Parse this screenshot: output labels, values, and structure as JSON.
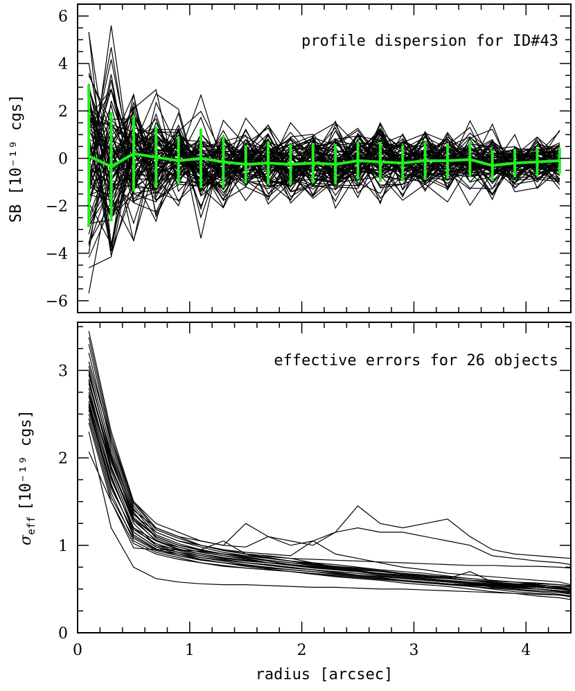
{
  "chart_data": [
    {
      "type": "line",
      "panel": "top",
      "annotation": "profile dispersion for ID#43",
      "ylabel": "SB [10⁻¹⁹ cgs]",
      "xlabel": "",
      "xlim": [
        0,
        4.4
      ],
      "ylim": [
        -6.5,
        6.5
      ],
      "x_ticks": [
        0,
        1,
        2,
        3,
        4
      ],
      "y_ticks": [
        -6,
        -4,
        -2,
        0,
        2,
        4,
        6
      ],
      "y_tick_labels": [
        "−6",
        "−4",
        "−2",
        "0",
        "2",
        "4",
        "6"
      ],
      "grid": false,
      "line_color": "#000000",
      "mean_color": "#22ee22",
      "radii": [
        0.1,
        0.3,
        0.5,
        0.7,
        0.9,
        1.1,
        1.3,
        1.5,
        1.7,
        1.9,
        2.1,
        2.3,
        2.5,
        2.7,
        2.9,
        3.1,
        3.3,
        3.5,
        3.7,
        3.9,
        4.1,
        4.3
      ],
      "mean_profile": [
        0.1,
        -0.35,
        0.2,
        0.05,
        -0.1,
        0.0,
        -0.15,
        -0.25,
        -0.2,
        -0.25,
        -0.2,
        -0.25,
        -0.1,
        -0.15,
        -0.2,
        -0.1,
        -0.1,
        -0.05,
        -0.3,
        -0.2,
        -0.15,
        -0.1
      ],
      "dispersion": [
        3.0,
        2.3,
        1.6,
        1.3,
        1.0,
        1.25,
        1.1,
        0.8,
        0.9,
        0.85,
        0.85,
        0.85,
        0.8,
        0.85,
        0.75,
        0.8,
        0.75,
        0.75,
        0.65,
        0.6,
        0.6,
        0.55
      ],
      "n_profiles": 80,
      "note": "individual profiles are drawn as random realisations with the listed dispersion"
    },
    {
      "type": "line",
      "panel": "bottom",
      "annotation": "effective errors for 26 objects",
      "ylabel_main": "σ",
      "ylabel_sub": "eff",
      "ylabel_rest": "[10⁻¹⁹ cgs]",
      "xlabel": "radius [arcsec]",
      "xlim": [
        0,
        4.4
      ],
      "ylim": [
        0,
        3.55
      ],
      "x_ticks": [
        0,
        1,
        2,
        3,
        4
      ],
      "x_tick_labels": [
        "0",
        "1",
        "2",
        "3",
        "4"
      ],
      "y_ticks": [
        0,
        1,
        2,
        3
      ],
      "y_tick_labels": [
        "0",
        "1",
        "2",
        "3"
      ],
      "grid": false,
      "line_color": "#000000",
      "radii": [
        0.1,
        0.3,
        0.5,
        0.7,
        0.9,
        1.1,
        1.3,
        1.5,
        1.7,
        1.9,
        2.1,
        2.3,
        2.5,
        2.7,
        2.9,
        3.1,
        3.3,
        3.5,
        3.7,
        3.9,
        4.1,
        4.3,
        4.4
      ],
      "series": [
        {
          "values": [
            3.45,
            2.3,
            1.5,
            1.2,
            1.1,
            1.0,
            0.95,
            0.9,
            0.88,
            0.85,
            0.8,
            0.78,
            0.75,
            0.72,
            0.7,
            0.68,
            0.65,
            0.62,
            0.6,
            0.58,
            0.55,
            0.52,
            0.5
          ]
        },
        {
          "values": [
            3.3,
            2.2,
            1.45,
            1.15,
            1.05,
            0.98,
            0.92,
            0.88,
            0.85,
            0.82,
            0.78,
            0.75,
            0.72,
            0.7,
            0.68,
            0.66,
            0.63,
            0.6,
            0.58,
            0.56,
            0.55,
            0.52,
            0.5
          ]
        },
        {
          "values": [
            3.0,
            2.0,
            1.3,
            1.05,
            0.95,
            0.9,
            0.86,
            0.82,
            0.8,
            0.78,
            0.75,
            0.72,
            0.7,
            0.68,
            0.65,
            0.62,
            0.6,
            0.58,
            0.56,
            0.55,
            0.53,
            0.5,
            0.48
          ]
        },
        {
          "values": [
            2.9,
            1.9,
            1.25,
            1.0,
            0.92,
            0.88,
            0.84,
            0.8,
            0.78,
            0.75,
            0.72,
            0.7,
            0.68,
            0.65,
            0.62,
            0.6,
            0.58,
            0.56,
            0.55,
            0.53,
            0.52,
            0.5,
            0.48
          ]
        },
        {
          "values": [
            2.8,
            1.85,
            1.2,
            1.0,
            0.95,
            0.9,
            0.85,
            0.82,
            0.8,
            0.78,
            0.76,
            0.74,
            0.72,
            0.7,
            0.68,
            0.66,
            0.64,
            0.62,
            0.6,
            0.58,
            0.56,
            0.55,
            0.53
          ]
        },
        {
          "values": [
            2.7,
            1.8,
            1.15,
            0.98,
            0.92,
            0.86,
            0.82,
            0.78,
            0.75,
            0.72,
            0.7,
            0.68,
            0.66,
            0.64,
            0.62,
            0.6,
            0.58,
            0.57,
            0.55,
            0.54,
            0.52,
            0.5,
            0.48
          ]
        },
        {
          "values": [
            2.6,
            1.7,
            1.1,
            0.95,
            0.9,
            0.84,
            0.8,
            0.76,
            0.73,
            0.7,
            0.68,
            0.66,
            0.64,
            0.62,
            0.6,
            0.58,
            0.56,
            0.55,
            0.53,
            0.52,
            0.5,
            0.48,
            0.47
          ]
        },
        {
          "values": [
            2.5,
            1.6,
            1.05,
            0.92,
            0.86,
            0.8,
            0.77,
            0.74,
            0.72,
            0.7,
            0.67,
            0.65,
            0.63,
            0.61,
            0.59,
            0.57,
            0.56,
            0.54,
            0.53,
            0.51,
            0.5,
            0.48,
            0.46
          ]
        },
        {
          "values": [
            2.07,
            1.5,
            0.97,
            0.95,
            0.95,
            0.93,
            0.9,
            0.88,
            0.87,
            0.85,
            0.84,
            0.83,
            0.82,
            0.81,
            0.8,
            0.79,
            0.78,
            0.77,
            0.77,
            0.76,
            0.76,
            0.75,
            0.74
          ]
        },
        {
          "values": [
            2.3,
            1.2,
            0.75,
            0.62,
            0.58,
            0.56,
            0.55,
            0.55,
            0.54,
            0.53,
            0.52,
            0.52,
            0.51,
            0.5,
            0.5,
            0.49,
            0.48,
            0.47,
            0.46,
            0.45,
            0.44,
            0.43,
            0.42
          ]
        },
        {
          "values": [
            3.1,
            2.2,
            1.5,
            1.25,
            1.15,
            1.05,
            1.0,
            0.98,
            1.1,
            1.05,
            1.0,
            1.15,
            1.45,
            1.25,
            1.2,
            1.25,
            1.3,
            1.1,
            0.95,
            0.9,
            0.88,
            0.86,
            0.85
          ]
        },
        {
          "values": [
            2.95,
            2.05,
            1.4,
            1.2,
            1.1,
            1.05,
            1.0,
            1.25,
            1.1,
            1.0,
            1.05,
            1.15,
            1.2,
            1.15,
            1.15,
            1.1,
            1.05,
            1.0,
            0.88,
            0.85,
            0.82,
            0.8,
            0.78
          ]
        },
        {
          "values": [
            2.85,
            1.95,
            1.35,
            1.15,
            1.05,
            1.0,
            0.95,
            0.92,
            0.9,
            0.88,
            1.05,
            0.9,
            0.85,
            0.8,
            0.75,
            0.72,
            0.68,
            0.66,
            0.64,
            0.62,
            0.6,
            0.58,
            0.55
          ]
        },
        {
          "values": [
            2.75,
            1.9,
            1.3,
            1.1,
            1.0,
            0.95,
            1.05,
            0.9,
            0.85,
            0.82,
            0.8,
            0.75,
            0.7,
            0.68,
            0.65,
            0.63,
            0.62,
            0.7,
            0.58,
            0.56,
            0.55,
            0.52,
            0.5
          ]
        },
        {
          "values": [
            2.65,
            1.75,
            1.2,
            1.05,
            0.98,
            0.92,
            0.88,
            0.85,
            0.8,
            0.78,
            0.75,
            0.72,
            0.7,
            0.66,
            0.63,
            0.6,
            0.58,
            0.56,
            0.54,
            0.52,
            0.5,
            0.47,
            0.45
          ]
        },
        {
          "values": [
            2.55,
            1.65,
            1.15,
            0.98,
            0.9,
            0.86,
            0.83,
            0.8,
            0.77,
            0.74,
            0.72,
            0.7,
            0.68,
            0.65,
            0.62,
            0.6,
            0.58,
            0.56,
            0.52,
            0.5,
            0.48,
            0.46,
            0.44
          ]
        },
        {
          "values": [
            2.45,
            1.55,
            1.08,
            0.94,
            0.88,
            0.83,
            0.8,
            0.77,
            0.74,
            0.72,
            0.7,
            0.68,
            0.66,
            0.63,
            0.6,
            0.58,
            0.56,
            0.53,
            0.5,
            0.47,
            0.45,
            0.43,
            0.41
          ]
        },
        {
          "values": [
            2.4,
            1.5,
            1.02,
            0.9,
            0.84,
            0.8,
            0.76,
            0.74,
            0.72,
            0.7,
            0.67,
            0.64,
            0.62,
            0.6,
            0.57,
            0.55,
            0.53,
            0.5,
            0.47,
            0.45,
            0.42,
            0.4,
            0.38
          ]
        },
        {
          "values": [
            3.2,
            2.15,
            1.42,
            1.12,
            1.02,
            0.95,
            0.9,
            0.87,
            0.83,
            0.8,
            0.78,
            0.76,
            0.73,
            0.7,
            0.67,
            0.64,
            0.62,
            0.6,
            0.57,
            0.55,
            0.54,
            0.53,
            0.52
          ]
        },
        {
          "values": [
            3.05,
            2.1,
            1.38,
            1.08,
            0.98,
            0.92,
            0.88,
            0.84,
            0.8,
            0.77,
            0.74,
            0.72,
            0.7,
            0.67,
            0.64,
            0.61,
            0.59,
            0.57,
            0.55,
            0.53,
            0.5,
            0.48,
            0.46
          ]
        },
        {
          "values": [
            2.88,
            1.98,
            1.32,
            1.1,
            1.0,
            0.94,
            0.9,
            0.86,
            0.83,
            0.8,
            0.77,
            0.74,
            0.71,
            0.68,
            0.65,
            0.62,
            0.6,
            0.58,
            0.56,
            0.54,
            0.52,
            0.5,
            0.48
          ]
        },
        {
          "values": [
            2.72,
            1.88,
            1.28,
            1.06,
            0.96,
            0.9,
            0.86,
            0.83,
            0.8,
            0.78,
            0.76,
            0.73,
            0.7,
            0.68,
            0.66,
            0.64,
            0.62,
            0.6,
            0.58,
            0.56,
            0.54,
            0.53,
            0.52
          ]
        },
        {
          "values": [
            2.62,
            1.78,
            1.18,
            1.02,
            0.94,
            0.88,
            0.84,
            0.8,
            0.78,
            0.75,
            0.72,
            0.69,
            0.66,
            0.63,
            0.6,
            0.58,
            0.56,
            0.55,
            0.54,
            0.53,
            0.52,
            0.51,
            0.5
          ]
        },
        {
          "values": [
            3.38,
            2.25,
            1.48,
            1.18,
            1.08,
            1.0,
            0.94,
            0.9,
            0.86,
            0.82,
            0.79,
            0.76,
            0.74,
            0.71,
            0.68,
            0.65,
            0.62,
            0.6,
            0.57,
            0.55,
            0.53,
            0.51,
            0.49
          ]
        },
        {
          "values": [
            2.98,
            2.02,
            1.36,
            1.1,
            1.0,
            0.95,
            0.9,
            0.86,
            0.82,
            0.78,
            0.75,
            0.72,
            0.7,
            0.68,
            0.66,
            0.64,
            0.62,
            0.6,
            0.59,
            0.58,
            0.57,
            0.55,
            0.54
          ]
        },
        {
          "values": [
            2.58,
            1.68,
            1.12,
            0.96,
            0.88,
            0.84,
            0.8,
            0.77,
            0.75,
            0.72,
            0.7,
            0.67,
            0.65,
            0.62,
            0.6,
            0.57,
            0.55,
            0.53,
            0.51,
            0.49,
            0.47,
            0.44,
            0.42
          ]
        }
      ]
    }
  ]
}
